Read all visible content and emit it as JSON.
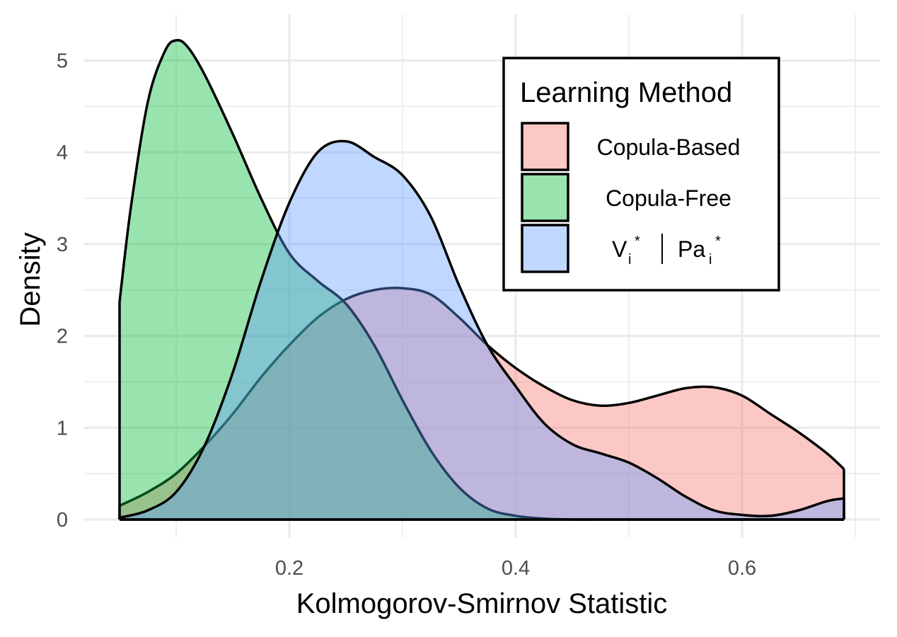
{
  "chart_data": {
    "type": "area",
    "xlabel": "Kolmogorov-Smirnov Statistic",
    "ylabel": "Density",
    "xlim": [
      0.05,
      0.7
    ],
    "ylim": [
      0,
      5.3
    ],
    "x_ticks": [
      0.2,
      0.4,
      0.6
    ],
    "x_tick_labels": [
      "0.2",
      "0.4",
      "0.6"
    ],
    "y_ticks": [
      0,
      1,
      2,
      3,
      4,
      5
    ],
    "y_tick_labels": [
      "0",
      "1",
      "2",
      "3",
      "4",
      "5"
    ],
    "grid": true,
    "legend": {
      "title": "Learning Method",
      "placement": "top-right"
    },
    "series": [
      {
        "name": "Copula-Based",
        "fill": "#F8766D",
        "x": [
          0.05,
          0.075,
          0.1,
          0.125,
          0.15,
          0.175,
          0.2,
          0.225,
          0.25,
          0.275,
          0.3,
          0.325,
          0.35,
          0.375,
          0.4,
          0.425,
          0.45,
          0.475,
          0.5,
          0.525,
          0.55,
          0.575,
          0.6,
          0.625,
          0.65,
          0.675,
          0.69
        ],
        "values": [
          0.15,
          0.3,
          0.5,
          0.8,
          1.15,
          1.55,
          1.9,
          2.2,
          2.4,
          2.5,
          2.52,
          2.45,
          2.2,
          1.9,
          1.65,
          1.45,
          1.3,
          1.24,
          1.27,
          1.35,
          1.43,
          1.44,
          1.35,
          1.15,
          0.95,
          0.72,
          0.55
        ]
      },
      {
        "name": "Copula-Free",
        "fill": "#00BA38",
        "x": [
          0.05,
          0.06,
          0.075,
          0.09,
          0.1,
          0.11,
          0.125,
          0.15,
          0.175,
          0.2,
          0.225,
          0.25,
          0.275,
          0.3,
          0.325,
          0.35,
          0.375,
          0.4,
          0.425,
          0.45,
          0.475,
          0.5,
          0.55,
          0.6,
          0.65,
          0.69
        ],
        "values": [
          2.37,
          3.4,
          4.55,
          5.1,
          5.22,
          5.15,
          4.85,
          4.2,
          3.5,
          2.9,
          2.6,
          2.35,
          1.9,
          1.3,
          0.75,
          0.35,
          0.12,
          0.04,
          0.01,
          0.0,
          0.0,
          0.0,
          0.0,
          0.0,
          0.0,
          0.0
        ]
      },
      {
        "name": "Vi* | Pai*",
        "fill": "#619CFF",
        "x": [
          0.05,
          0.075,
          0.1,
          0.125,
          0.15,
          0.175,
          0.2,
          0.225,
          0.25,
          0.275,
          0.3,
          0.325,
          0.35,
          0.375,
          0.4,
          0.425,
          0.45,
          0.475,
          0.5,
          0.525,
          0.55,
          0.575,
          0.6,
          0.625,
          0.65,
          0.675,
          0.69
        ],
        "values": [
          0.02,
          0.1,
          0.3,
          0.8,
          1.6,
          2.6,
          3.45,
          4.0,
          4.12,
          3.95,
          3.75,
          3.3,
          2.55,
          1.9,
          1.45,
          1.05,
          0.82,
          0.72,
          0.62,
          0.45,
          0.25,
          0.1,
          0.05,
          0.04,
          0.1,
          0.2,
          0.23
        ]
      }
    ]
  },
  "legend_title": "Learning Method",
  "legend_labels": {
    "copula_based": "Copula-Based",
    "copula_free": "Copula-Free",
    "vi_main": "V",
    "vi_sub": "i",
    "vi_sup": "*",
    "sep": "|",
    "pa_main": "Pa",
    "pa_sub": "i",
    "pa_sup": "*"
  }
}
